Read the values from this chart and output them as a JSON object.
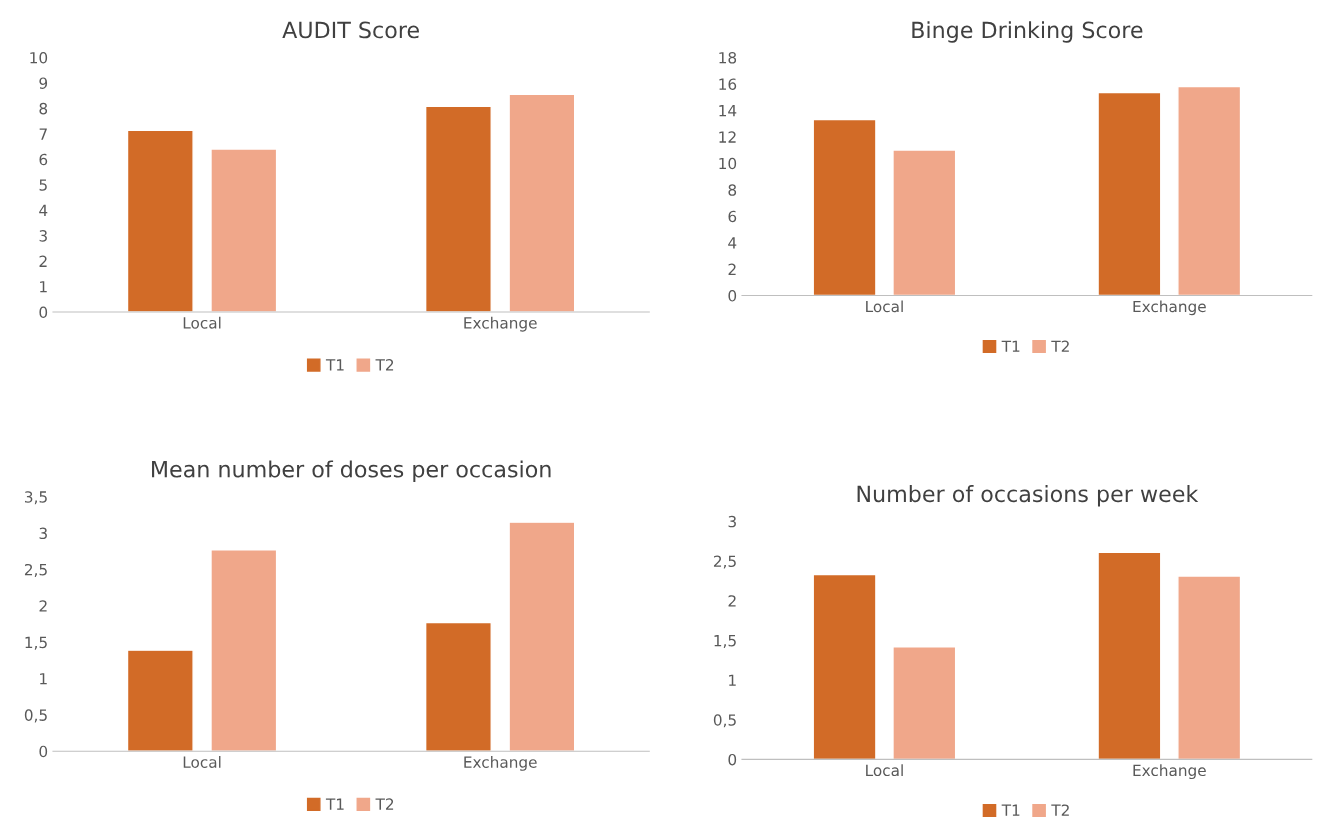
{
  "chart_data": [
    {
      "type": "bar",
      "title": "AUDIT Score",
      "categories": [
        "Local",
        "Exchange"
      ],
      "series": [
        {
          "name": "T1",
          "color": "#d26b27",
          "values": [
            7.14,
            8.08
          ]
        },
        {
          "name": "T2",
          "color": "#f0a78a",
          "values": [
            6.4,
            8.55
          ]
        }
      ],
      "ylim": [
        0,
        10
      ],
      "yticks": [
        0,
        1,
        2,
        3,
        4,
        5,
        6,
        7,
        8,
        9,
        10
      ],
      "grid": false,
      "legend": "bottom"
    },
    {
      "type": "bar",
      "title": "Binge Drinking Score",
      "categories": [
        "Local",
        "Exchange"
      ],
      "series": [
        {
          "name": "T1",
          "color": "#d26b27",
          "values": [
            13.3,
            15.35
          ]
        },
        {
          "name": "T2",
          "color": "#f0a78a",
          "values": [
            11.0,
            15.8
          ]
        }
      ],
      "ylim": [
        0,
        18
      ],
      "yticks": [
        0,
        2,
        4,
        6,
        8,
        10,
        12,
        14,
        16,
        18
      ],
      "grid": false,
      "legend": "bottom"
    },
    {
      "type": "bar",
      "title": "Mean number of doses per occasion",
      "categories": [
        "Local",
        "Exchange"
      ],
      "series": [
        {
          "name": "T1",
          "color": "#d26b27",
          "values": [
            1.39,
            1.77
          ]
        },
        {
          "name": "T2",
          "color": "#f0a78a",
          "values": [
            2.77,
            3.15
          ]
        }
      ],
      "ylim": [
        0,
        3.5
      ],
      "yticks": [
        0,
        {
          "value": 0.5,
          "label": "0,5"
        },
        1,
        {
          "value": 1.5,
          "label": "1,5"
        },
        2,
        {
          "value": 2.5,
          "label": "2,5"
        },
        3,
        {
          "value": 3.5,
          "label": "3,5"
        }
      ],
      "grid": false,
      "legend": "bottom"
    },
    {
      "type": "bar",
      "title": "Number of occasions per week",
      "categories": [
        "Local",
        "Exchange"
      ],
      "series": [
        {
          "name": "T1",
          "color": "#d26b27",
          "values": [
            2.33,
            2.61
          ]
        },
        {
          "name": "T2",
          "color": "#f0a78a",
          "values": [
            1.42,
            2.31
          ]
        }
      ],
      "ylim": [
        0,
        3
      ],
      "yticks": [
        0,
        {
          "value": 0.5,
          "label": "0,5"
        },
        1,
        {
          "value": 1.5,
          "label": "1,5"
        },
        2,
        {
          "value": 2.5,
          "label": "2,5"
        },
        3
      ],
      "grid": false,
      "legend": "bottom"
    }
  ]
}
